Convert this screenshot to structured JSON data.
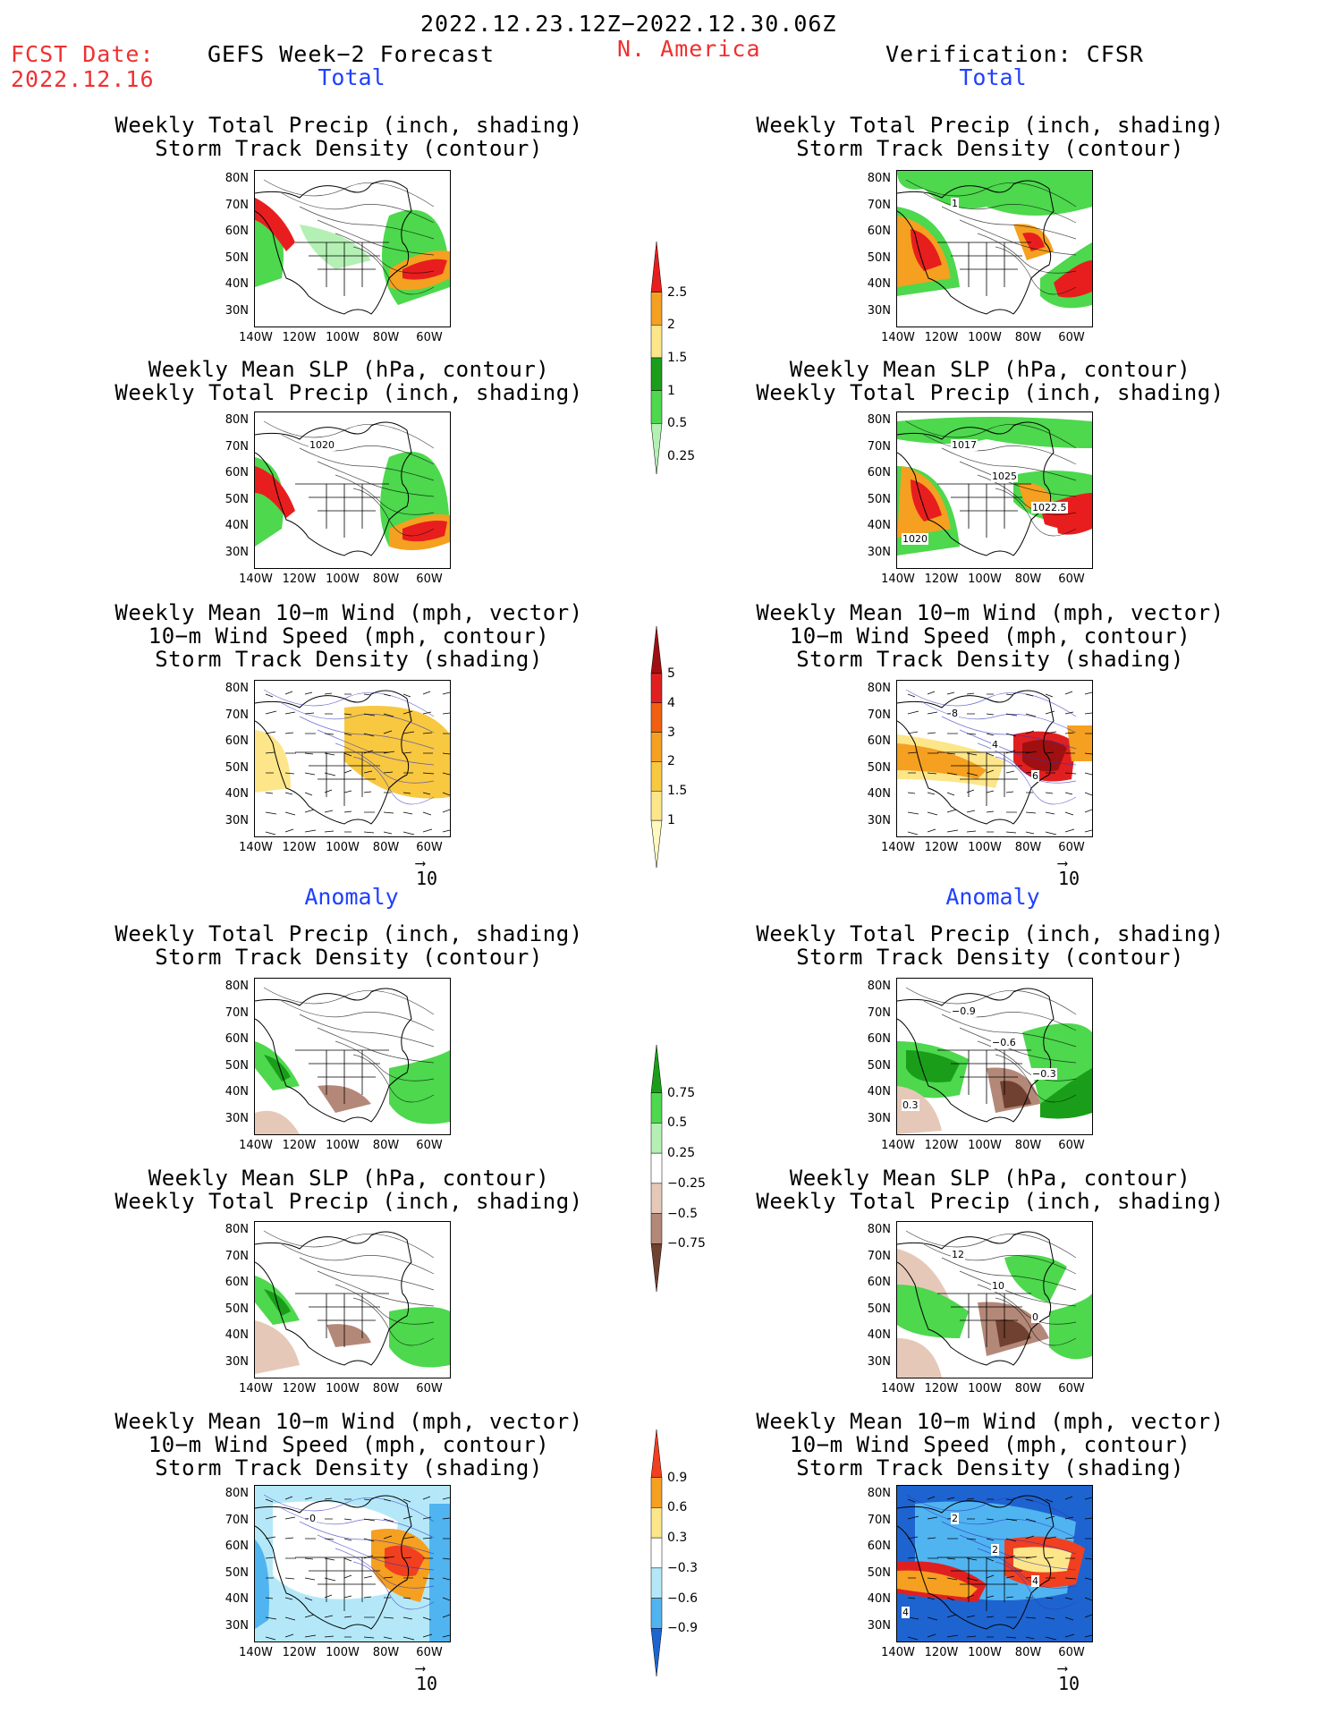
{
  "header": {
    "period": "2022.12.23.12Z−2022.12.30.06Z",
    "fcst_label": "FCST Date:",
    "fcst_date": "2022.12.16",
    "left_title": "GEFS Week−2 Forecast",
    "region": "N. America",
    "right_title": "Verification: CFSR"
  },
  "sections": {
    "total": "Total",
    "anomaly": "Anomaly"
  },
  "panel_titles": {
    "precip_storm": [
      "Weekly Total Precip (inch, shading)",
      "Storm Track Density (contour)"
    ],
    "slp_precip": [
      "Weekly Mean SLP (hPa, contour)",
      "Weekly Total Precip (inch, shading)"
    ],
    "wind_storm": [
      "Weekly Mean 10−m Wind (mph, vector)",
      "10−m Wind Speed (mph, contour)",
      "Storm Track Density (shading)"
    ]
  },
  "axes": {
    "lat_ticks": [
      "80N",
      "70N",
      "60N",
      "50N",
      "40N",
      "30N"
    ],
    "lon_ticks": [
      "140W",
      "120W",
      "100W",
      "80W",
      "60W"
    ]
  },
  "vector_ref": "10",
  "colorbars": {
    "precip_total": {
      "labels": [
        "2.5",
        "2",
        "1.5",
        "1",
        "0.5",
        "0.25"
      ],
      "colors": [
        "#e81e1e",
        "#f5a020",
        "#fde68a",
        "#1a9e1a",
        "#4dd84d",
        "#b4f0b4"
      ]
    },
    "storm_total": {
      "labels": [
        "5",
        "4",
        "3",
        "2",
        "1.5",
        "1"
      ],
      "colors": [
        "#a01010",
        "#e02020",
        "#f06010",
        "#f5a020",
        "#f8c840",
        "#fde68a",
        "#fff8c0"
      ]
    },
    "precip_anom": {
      "labels": [
        "0.75",
        "0.5",
        "0.25",
        "−0.25",
        "−0.5",
        "−0.75"
      ],
      "colors": [
        "#1a9e1a",
        "#4dd84d",
        "#b4f0b4",
        "#ffffff",
        "#e6c8b8",
        "#b48878",
        "#704030"
      ]
    },
    "storm_anom": {
      "labels": [
        "0.9",
        "0.6",
        "0.3",
        "−0.3",
        "−0.6",
        "−0.9"
      ],
      "colors": [
        "#f04020",
        "#f5a020",
        "#fde68a",
        "#ffffff",
        "#b4e8f8",
        "#50b4f0",
        "#1e64d0"
      ]
    }
  },
  "map_labels": {
    "right_precip_total": [
      "1"
    ],
    "right_slp_total": [
      "1017",
      "1025",
      "1022.5",
      "1020"
    ],
    "left_slp_total": [
      "1020"
    ],
    "right_wind_total": [
      "8",
      "4",
      "6"
    ],
    "right_precip_anom": [
      "−0.9",
      "−0.6",
      "−0.3",
      "0.3"
    ],
    "right_slp_anom": [
      "12",
      "10",
      "0"
    ],
    "left_wind_anom": [
      "0"
    ],
    "right_wind_anom": [
      "2",
      "2",
      "4",
      "4"
    ]
  }
}
